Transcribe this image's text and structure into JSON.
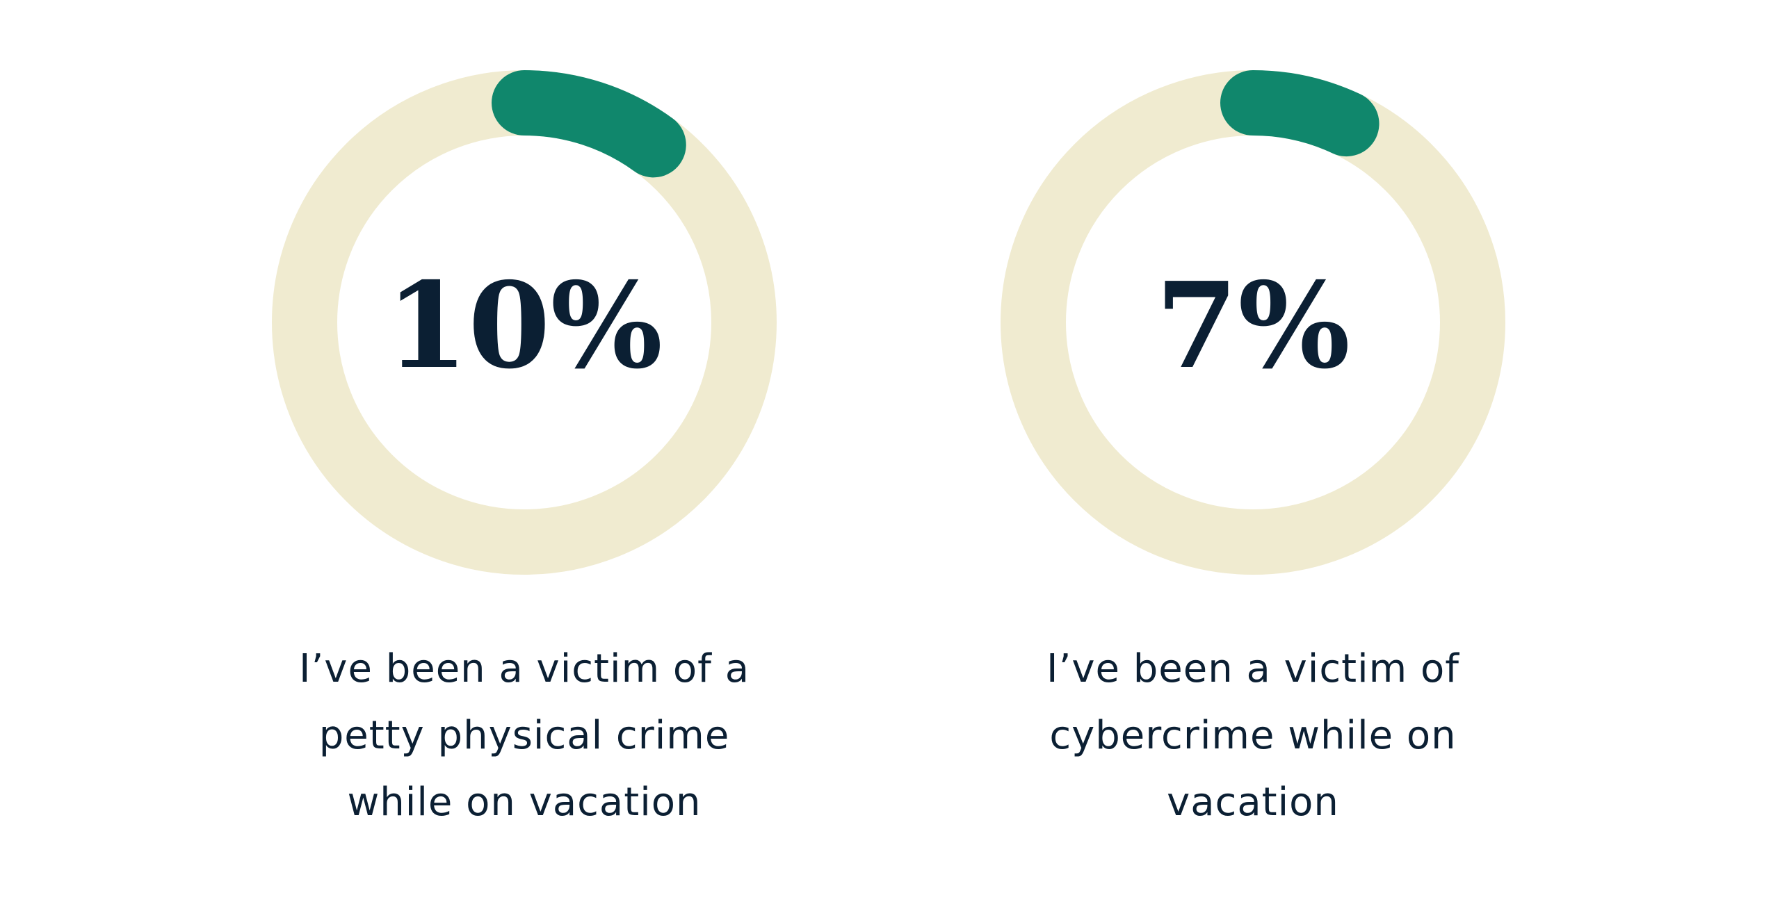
{
  "chart_data": {
    "type": "donut",
    "colors": {
      "track": "#f0ebd0",
      "fill": "#10876c",
      "text": "#0b1f33"
    },
    "charts": [
      {
        "value": 10,
        "label": "10%",
        "caption": "I’ve been a victim of a petty physical crime while on vacation"
      },
      {
        "value": 7,
        "label": "7%",
        "caption": "I’ve been a victim of cybercrime while on vacation"
      }
    ]
  }
}
